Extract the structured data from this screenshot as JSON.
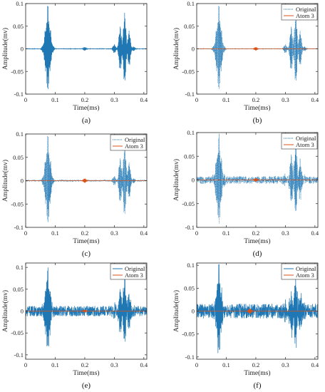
{
  "colors": {
    "original": "#1f77b4",
    "atom": "#d95319",
    "axis": "#262626"
  },
  "chart_data": [
    {
      "type": "line",
      "panel_label": "(a)",
      "xlabel": "Time(ms)",
      "ylabel": "Amplitude(mv)",
      "xlim": [
        0,
        0.41
      ],
      "ylim": [
        -0.1,
        0.1
      ],
      "xticks": [
        "0",
        "0.1",
        "0.2",
        "0.3",
        "0.4"
      ],
      "yticks": [
        "-0.1",
        "-0.05",
        "0",
        "0.05",
        "0.1"
      ],
      "legend": null,
      "series": [
        {
          "line_style": "solid",
          "color": "original",
          "envelope": [
            {
              "x": 0.06,
              "amp": 0.01
            },
            {
              "x": 0.068,
              "amp": 0.05
            },
            {
              "x": 0.075,
              "amp": 0.1
            },
            {
              "x": 0.082,
              "amp": 0.05
            },
            {
              "x": 0.09,
              "amp": 0.01
            },
            {
              "x": 0.2,
              "amp": 0.004
            },
            {
              "x": 0.3,
              "amp": 0.01
            },
            {
              "x": 0.32,
              "amp": 0.05
            },
            {
              "x": 0.335,
              "amp": 0.08
            },
            {
              "x": 0.35,
              "amp": 0.04
            },
            {
              "x": 0.365,
              "amp": 0.005
            }
          ],
          "noise": 0.0005
        }
      ]
    },
    {
      "type": "line",
      "panel_label": "(b)",
      "xlabel": "Time(ms)",
      "ylabel": "Amplitude(mv)",
      "xlim": [
        0,
        0.41
      ],
      "ylim": [
        -0.1,
        0.1
      ],
      "xticks": [
        "0",
        "0.1",
        "0.2",
        "0.3",
        "0.4"
      ],
      "yticks": [
        "-0.1",
        "-0.05",
        "0",
        "0.05",
        "0.1"
      ],
      "legend": {
        "position": "top-right",
        "entries": [
          "Original",
          "Atom 3"
        ]
      },
      "series": [
        {
          "name": "Original",
          "line_style": "dotted",
          "color": "original",
          "envelope": [
            {
              "x": 0.06,
              "amp": 0.01
            },
            {
              "x": 0.068,
              "amp": 0.05
            },
            {
              "x": 0.075,
              "amp": 0.1
            },
            {
              "x": 0.082,
              "amp": 0.05
            },
            {
              "x": 0.09,
              "amp": 0.01
            },
            {
              "x": 0.3,
              "amp": 0.01
            },
            {
              "x": 0.32,
              "amp": 0.05
            },
            {
              "x": 0.335,
              "amp": 0.08
            },
            {
              "x": 0.35,
              "amp": 0.04
            },
            {
              "x": 0.365,
              "amp": 0.005
            }
          ],
          "noise": 0.0005
        },
        {
          "name": "Atom 3",
          "line_style": "solid",
          "color": "atom",
          "envelope": [
            {
              "x": 0.2,
              "amp": 0.004
            }
          ],
          "noise": 0.0
        }
      ]
    },
    {
      "type": "line",
      "panel_label": "(c)",
      "xlabel": "Time(ms)",
      "ylabel": "Amplitude(mv)",
      "xlim": [
        0,
        0.41
      ],
      "ylim": [
        -0.1,
        0.1
      ],
      "xticks": [
        "0",
        "0.1",
        "0.2",
        "0.3",
        "0.4"
      ],
      "yticks": [
        "-0.1",
        "-0.05",
        "0",
        "0.05",
        "0.1"
      ],
      "legend": {
        "position": "top-right",
        "entries": [
          "Original",
          "Atom 3"
        ]
      },
      "series": [
        {
          "name": "Original",
          "line_style": "dotted",
          "color": "original",
          "envelope": [
            {
              "x": 0.06,
              "amp": 0.01
            },
            {
              "x": 0.068,
              "amp": 0.05
            },
            {
              "x": 0.075,
              "amp": 0.1
            },
            {
              "x": 0.082,
              "amp": 0.05
            },
            {
              "x": 0.09,
              "amp": 0.01
            },
            {
              "x": 0.3,
              "amp": 0.01
            },
            {
              "x": 0.32,
              "amp": 0.05
            },
            {
              "x": 0.335,
              "amp": 0.08
            },
            {
              "x": 0.35,
              "amp": 0.04
            },
            {
              "x": 0.365,
              "amp": 0.005
            }
          ],
          "noise": 0.0015
        },
        {
          "name": "Atom 3",
          "line_style": "solid",
          "color": "atom",
          "envelope": [
            {
              "x": 0.2,
              "amp": 0.005
            }
          ],
          "noise": 0.0
        }
      ]
    },
    {
      "type": "line",
      "panel_label": "(d)",
      "xlabel": "Time(ms)",
      "ylabel": "Amplitude(mv)",
      "xlim": [
        0,
        0.41
      ],
      "ylim": [
        -0.1,
        0.1
      ],
      "xticks": [
        "0",
        "0.1",
        "0.2",
        "0.3",
        "0.4"
      ],
      "yticks": [
        "-0.1",
        "-0.05",
        "0",
        "0.05",
        "0.1"
      ],
      "legend": {
        "position": "top-right",
        "entries": [
          "Original",
          "Atom 3"
        ]
      },
      "series": [
        {
          "name": "Original",
          "line_style": "dotted",
          "color": "original",
          "envelope": [
            {
              "x": 0.06,
              "amp": 0.01
            },
            {
              "x": 0.068,
              "amp": 0.05
            },
            {
              "x": 0.075,
              "amp": 0.1
            },
            {
              "x": 0.082,
              "amp": 0.05
            },
            {
              "x": 0.09,
              "amp": 0.01
            },
            {
              "x": 0.3,
              "amp": 0.01
            },
            {
              "x": 0.32,
              "amp": 0.05
            },
            {
              "x": 0.335,
              "amp": 0.08
            },
            {
              "x": 0.35,
              "amp": 0.04
            },
            {
              "x": 0.365,
              "amp": 0.005
            }
          ],
          "noise": 0.008
        },
        {
          "name": "Atom 3",
          "line_style": "solid",
          "color": "atom",
          "envelope": [
            {
              "x": 0.2,
              "amp": 0.004
            }
          ],
          "noise": 0.0
        }
      ]
    },
    {
      "type": "line",
      "panel_label": "(e)",
      "xlabel": "Time(ms)",
      "ylabel": "Amplitude(mv)",
      "xlim": [
        0,
        0.41
      ],
      "ylim": [
        -0.11,
        0.11
      ],
      "xticks": [
        "0",
        "0.1",
        "0.2",
        "0.3",
        "0.4"
      ],
      "yticks": [
        "-0.1",
        "-0.05",
        "0",
        "0.05",
        "0.1"
      ],
      "legend": {
        "position": "top-right",
        "entries": [
          "Original",
          "Atom 3"
        ]
      },
      "series": [
        {
          "name": "Original",
          "line_style": "solid",
          "color": "original",
          "envelope": [
            {
              "x": 0.06,
              "amp": 0.01
            },
            {
              "x": 0.068,
              "amp": 0.05
            },
            {
              "x": 0.075,
              "amp": 0.1
            },
            {
              "x": 0.082,
              "amp": 0.05
            },
            {
              "x": 0.09,
              "amp": 0.01
            },
            {
              "x": 0.3,
              "amp": 0.01
            },
            {
              "x": 0.32,
              "amp": 0.05
            },
            {
              "x": 0.335,
              "amp": 0.08
            },
            {
              "x": 0.35,
              "amp": 0.04
            },
            {
              "x": 0.365,
              "amp": 0.005
            }
          ],
          "noise": 0.012
        },
        {
          "name": "Atom 3",
          "line_style": "solid",
          "color": "atom",
          "envelope": [
            {
              "x": 0.2,
              "amp": 0.003
            }
          ],
          "noise": 0.0
        }
      ]
    },
    {
      "type": "line",
      "panel_label": "(f)",
      "xlabel": "Time(ms)",
      "ylabel": "Amplitude(mv)",
      "xlim": [
        0,
        0.41
      ],
      "ylim": [
        -0.105,
        0.105
      ],
      "xticks": [
        "0",
        "0.1",
        "0.2",
        "0.3",
        "0.4"
      ],
      "yticks": [
        "-0.1",
        "-0.05",
        "0",
        "0.05",
        "0.1"
      ],
      "legend": {
        "position": "top-right",
        "entries": [
          "Original",
          "Atom 3"
        ]
      },
      "series": [
        {
          "name": "Original",
          "line_style": "solid",
          "color": "original",
          "envelope": [
            {
              "x": 0.06,
              "amp": 0.01
            },
            {
              "x": 0.068,
              "amp": 0.05
            },
            {
              "x": 0.075,
              "amp": 0.1
            },
            {
              "x": 0.082,
              "amp": 0.05
            },
            {
              "x": 0.09,
              "amp": 0.01
            },
            {
              "x": 0.3,
              "amp": 0.01
            },
            {
              "x": 0.32,
              "amp": 0.05
            },
            {
              "x": 0.335,
              "amp": 0.08
            },
            {
              "x": 0.35,
              "amp": 0.04
            },
            {
              "x": 0.365,
              "amp": 0.005
            }
          ],
          "noise": 0.016
        },
        {
          "name": "Atom 3",
          "line_style": "solid",
          "color": "atom",
          "envelope": [
            {
              "x": 0.18,
              "amp": 0.006
            }
          ],
          "noise": 0.0
        }
      ]
    }
  ]
}
